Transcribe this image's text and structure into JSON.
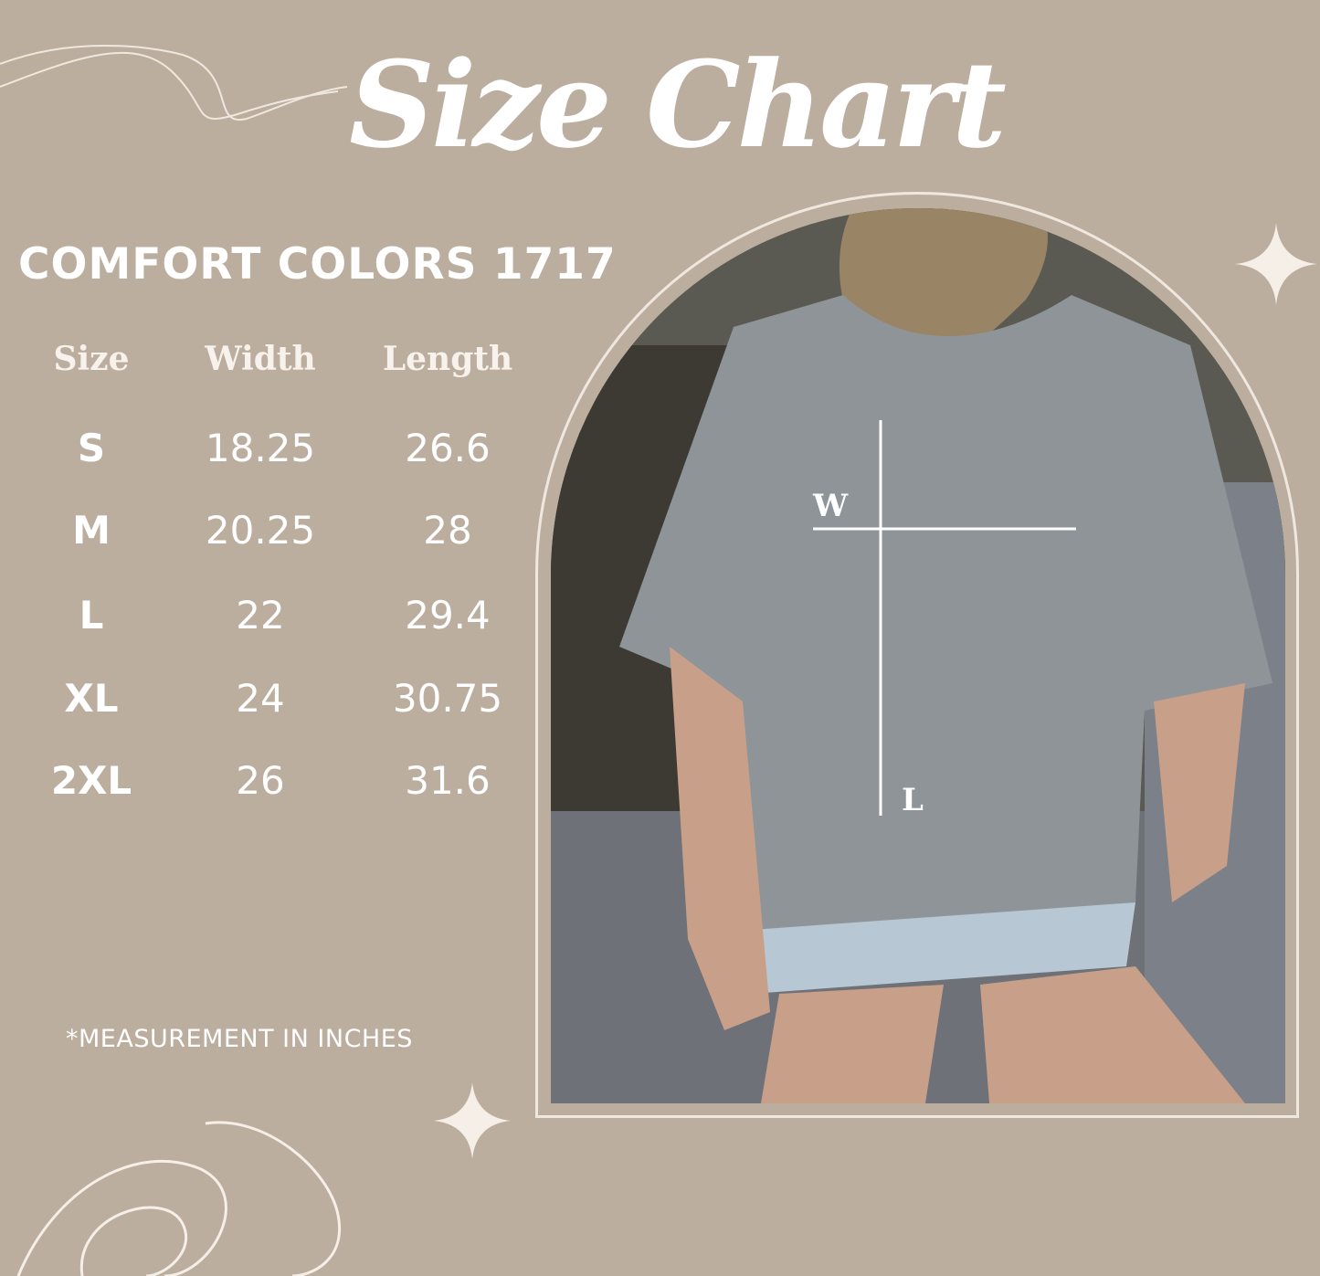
{
  "title": "Size Chart",
  "brand": "COMFORT COLORS 1717",
  "table": {
    "headers": [
      "Size",
      "Width",
      "Length"
    ],
    "rows": [
      [
        "S",
        "18.25",
        "26.6"
      ],
      [
        "M",
        "20.25",
        "28"
      ],
      [
        "L",
        "22",
        "29.4"
      ],
      [
        "XL",
        "24",
        "30.75"
      ],
      [
        "2XL",
        "26",
        "31.6"
      ]
    ]
  },
  "note": "*MEASUREMENT IN INCHES",
  "photo": {
    "width_marker": "W",
    "length_marker": "L"
  },
  "colors": {
    "background": "#bcae9f",
    "text": "#ffffff",
    "shirt": "#8e9498"
  },
  "icons": [
    "sparkle-star-icon",
    "sparkle-star-icon",
    "swirl-line-decoration"
  ]
}
